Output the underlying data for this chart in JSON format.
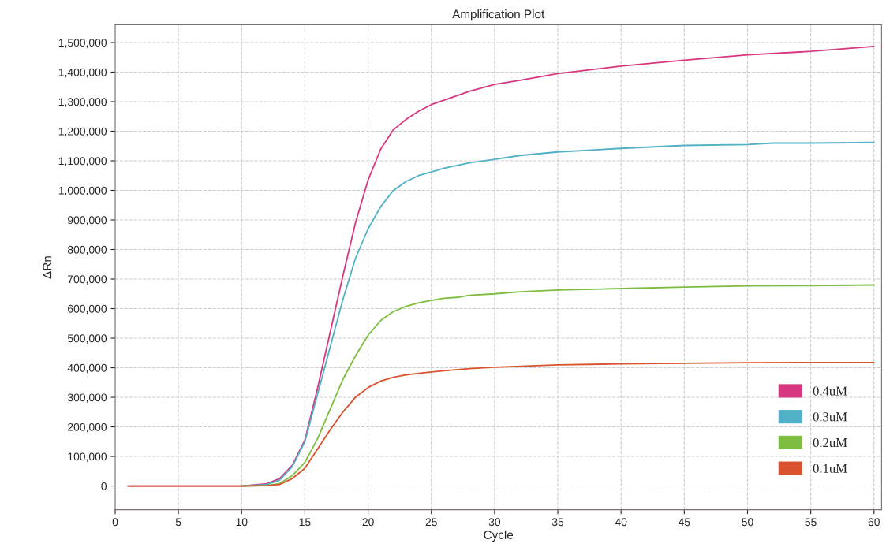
{
  "chart_data": {
    "type": "line",
    "title": "Amplification Plot",
    "xlabel": "Cycle",
    "ylabel": "ΔRn",
    "xlim": [
      0,
      60.6
    ],
    "xticks": [
      0,
      5,
      10,
      15,
      20,
      25,
      30,
      35,
      40,
      45,
      50,
      55,
      60
    ],
    "ylim": [
      -80000,
      1560000
    ],
    "yticks": [
      {
        "value": 0,
        "label": "0"
      },
      {
        "value": 100000,
        "label": "100,000"
      },
      {
        "value": 200000,
        "label": "200,000"
      },
      {
        "value": 300000,
        "label": "300,000"
      },
      {
        "value": 400000,
        "label": "400,000"
      },
      {
        "value": 500000,
        "label": "500,000"
      },
      {
        "value": 600000,
        "label": "600,000"
      },
      {
        "value": 700000,
        "label": "700,000"
      },
      {
        "value": 800000,
        "label": "800,000"
      },
      {
        "value": 900000,
        "label": "900,000"
      },
      {
        "value": 1000000,
        "label": "1,000,000"
      },
      {
        "value": 1100000,
        "label": "1,100,000"
      },
      {
        "value": 1200000,
        "label": "1,200,000"
      },
      {
        "value": 1300000,
        "label": "1,300,000"
      },
      {
        "value": 1400000,
        "label": "1,400,000"
      },
      {
        "value": 1500000,
        "label": "1,500,000"
      }
    ],
    "grid": true,
    "legend": "bottom right",
    "line_style": "solid",
    "marker": "none",
    "series": [
      {
        "name": "0.4uM",
        "color": "#d6377f",
        "x": [
          1,
          5,
          10,
          12,
          13,
          14,
          15,
          16,
          17,
          18,
          19,
          20,
          21,
          22,
          23,
          24,
          25,
          26,
          28,
          30,
          32,
          35,
          40,
          45,
          50,
          55,
          60
        ],
        "values": [
          0,
          0,
          0,
          8000,
          25000,
          70000,
          155000,
          330000,
          520000,
          710000,
          890000,
          1035000,
          1140000,
          1205000,
          1240000,
          1268000,
          1290000,
          1305000,
          1335000,
          1358000,
          1372000,
          1395000,
          1420000,
          1440000,
          1458000,
          1470000,
          1487000
        ]
      },
      {
        "name": "0.3uM",
        "color": "#4fb0c6",
        "x": [
          10,
          12,
          13,
          14,
          15,
          16,
          17,
          18,
          19,
          20,
          21,
          22,
          23,
          24,
          25,
          26,
          28,
          30,
          32,
          35,
          40,
          45,
          50,
          52,
          55,
          60
        ],
        "values": [
          0,
          5000,
          20000,
          65000,
          150000,
          310000,
          470000,
          630000,
          770000,
          870000,
          945000,
          1000000,
          1030000,
          1050000,
          1062000,
          1075000,
          1093000,
          1105000,
          1118000,
          1130000,
          1142000,
          1152000,
          1155000,
          1160000,
          1160000,
          1162000
        ]
      },
      {
        "name": "0.2uM",
        "color": "#7cbc3f",
        "x": [
          10,
          12,
          13,
          14,
          15,
          16,
          17,
          18,
          19,
          20,
          21,
          22,
          23,
          24,
          25,
          26,
          27,
          28,
          30,
          32,
          35,
          40,
          45,
          50,
          55,
          60
        ],
        "values": [
          0,
          2000,
          8000,
          35000,
          80000,
          160000,
          260000,
          360000,
          440000,
          510000,
          560000,
          590000,
          608000,
          620000,
          628000,
          635000,
          638000,
          645000,
          650000,
          657000,
          663000,
          668000,
          673000,
          677000,
          678000,
          680000
        ]
      },
      {
        "name": "0.1uM",
        "color": "#d9532e",
        "x": [
          1,
          5,
          10,
          12,
          13,
          14,
          15,
          16,
          17,
          18,
          19,
          20,
          21,
          22,
          23,
          24,
          25,
          26,
          28,
          30,
          35,
          40,
          45,
          50,
          55,
          60
        ],
        "values": [
          0,
          0,
          0,
          1000,
          5000,
          25000,
          60000,
          125000,
          190000,
          250000,
          300000,
          333000,
          355000,
          368000,
          376000,
          381000,
          386000,
          390000,
          397000,
          402000,
          410000,
          413000,
          415000,
          417000,
          418000,
          418000
        ]
      }
    ]
  }
}
